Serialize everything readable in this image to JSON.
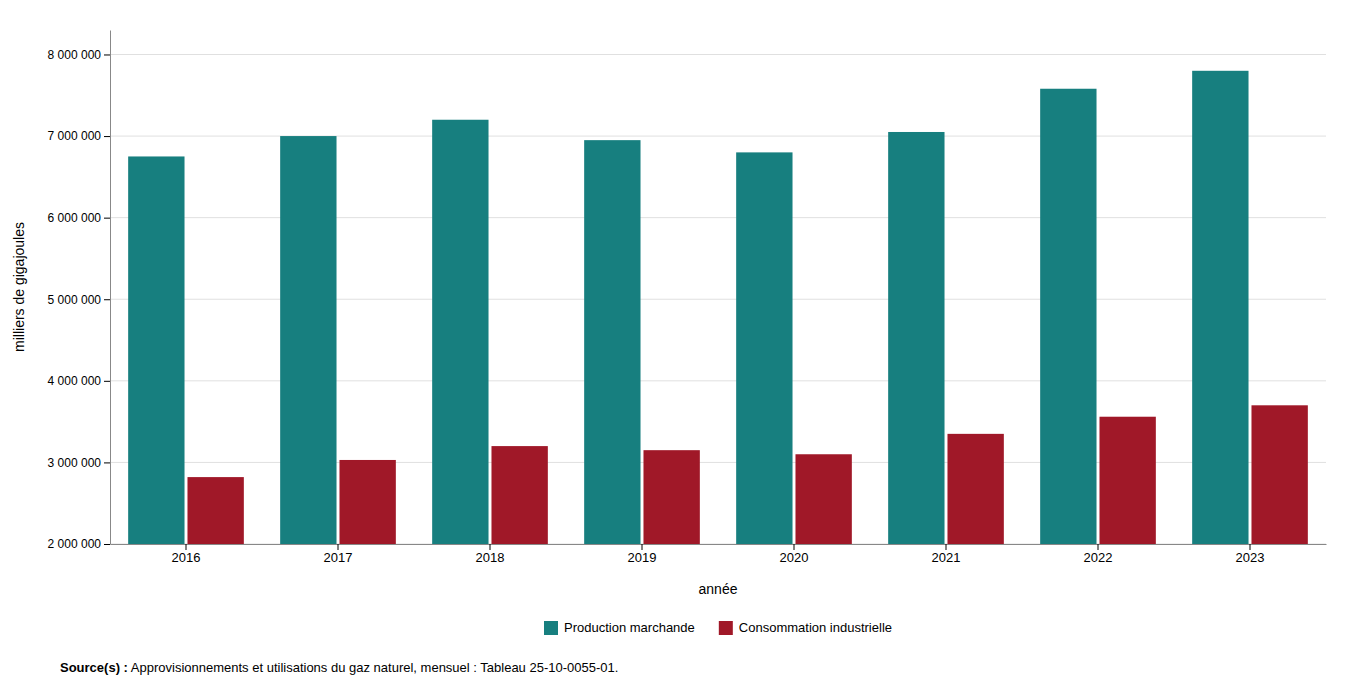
{
  "chart_data": {
    "type": "bar",
    "x_label": "année",
    "y_label": "milliers de gigajoules",
    "categories": [
      "2016",
      "2017",
      "2018",
      "2019",
      "2020",
      "2021",
      "2022",
      "2023"
    ],
    "series": [
      {
        "name": "Production marchande",
        "color": "#177f7f",
        "values": [
          6750000,
          7000000,
          7200000,
          6950000,
          6800000,
          7050000,
          7580000,
          7800000
        ]
      },
      {
        "name": "Consommation industrielle",
        "color": "#a01828",
        "values": [
          2820000,
          3030000,
          3200000,
          3150000,
          3100000,
          3350000,
          3560000,
          3700000
        ]
      }
    ],
    "ylim": [
      2000000,
      8300000
    ],
    "yticks": [
      {
        "value": 2000000,
        "label": "2 000 000"
      },
      {
        "value": 3000000,
        "label": "3 000 000"
      },
      {
        "value": 4000000,
        "label": "4 000 000"
      },
      {
        "value": 5000000,
        "label": "5 000 000"
      },
      {
        "value": 6000000,
        "label": "6 000 000"
      },
      {
        "value": 7000000,
        "label": "7 000 000"
      },
      {
        "value": 8000000,
        "label": "8 000 000"
      }
    ],
    "grid": true,
    "legend": "bottom",
    "annotations": [
      "Source(s) :",
      " Approvisionnements et utilisations du gaz naturel, mensuel : Tableau 25-10-0055-01."
    ]
  }
}
